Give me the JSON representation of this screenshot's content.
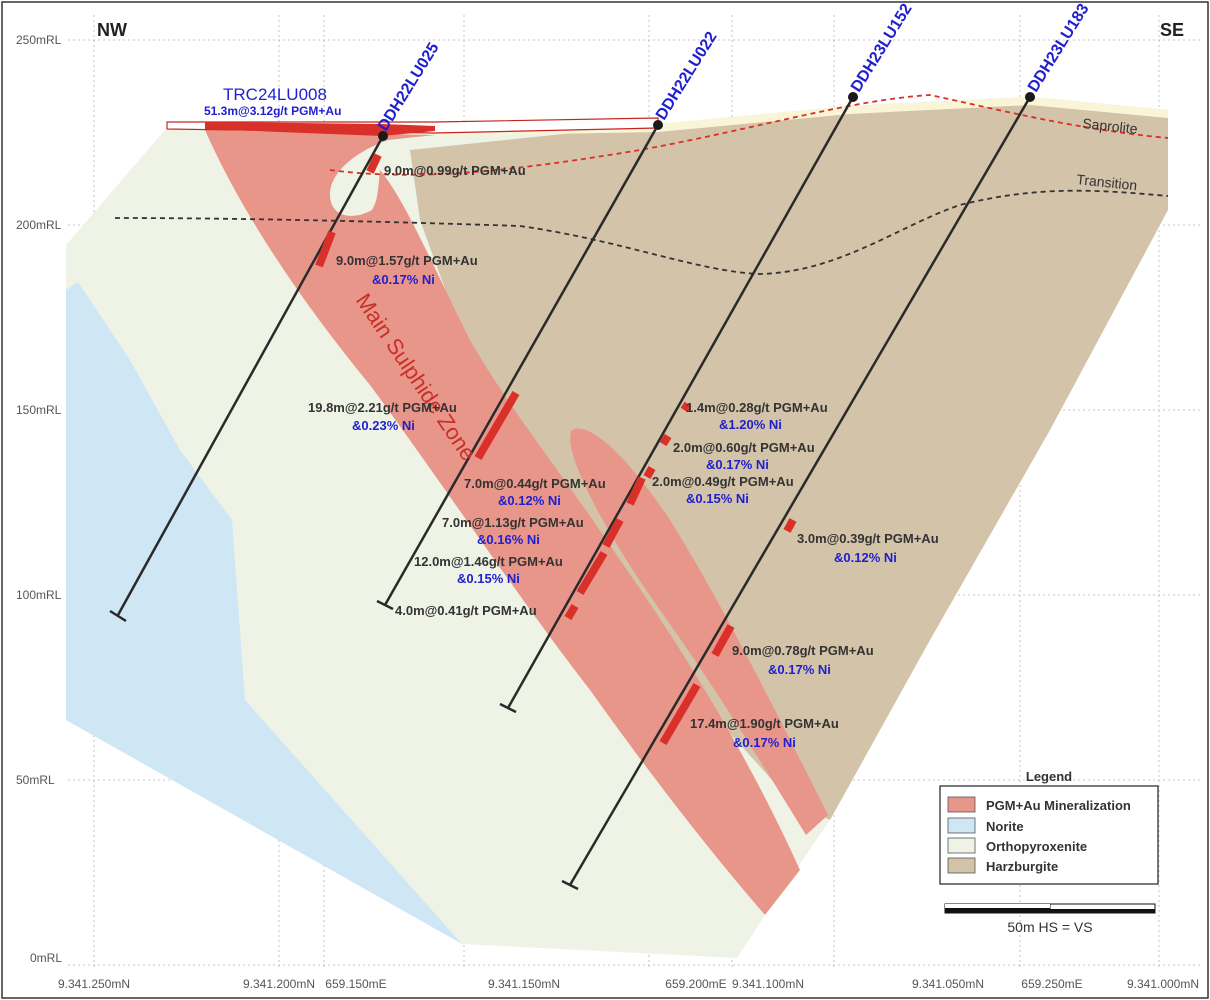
{
  "compass": {
    "left": "NW",
    "right": "SE"
  },
  "rl_labels": [
    "250mRL",
    "200mRL",
    "150mRL",
    "100mRL",
    "50mRL",
    "0mRL"
  ],
  "bottom_labels": [
    "9.341.250mN",
    "9.341.200mN",
    "659.150mE",
    "9.341.150mN",
    "659.200mE",
    "9.341.100mN",
    "9.341.050mN",
    "659.250mE",
    "9.341.000mN"
  ],
  "holes": {
    "trc": "TRC24LU008",
    "trc_result": "51.3m@3.12g/t PGM+Au",
    "h1": "DDH22LU025",
    "h2": "DDH22LU022",
    "h3": "DDH23LU152",
    "h4": "DDH23LU183"
  },
  "zone_label": "Main Sulphide Zone",
  "surfaces": {
    "saprolite": "Saprolite",
    "transition": "Transition"
  },
  "intercepts": {
    "i1": "9.0m@0.99g/t PGM+Au",
    "i2a": "9.0m@1.57g/t PGM+Au",
    "i2b": "&0.17% Ni",
    "i3a": "19.8m@2.21g/t PGM+Au",
    "i3b": "&0.23% Ni",
    "i4a": "7.0m@0.44g/t PGM+Au",
    "i4b": "&0.12% Ni",
    "i5a": "7.0m@1.13g/t PGM+Au",
    "i5b": "&0.16% Ni",
    "i6a": "12.0m@1.46g/t PGM+Au",
    "i6b": "&0.15% Ni",
    "i7": "4.0m@0.41g/t PGM+Au",
    "i8a": "1.4m@0.28g/t PGM+Au",
    "i8b": "&1.20% Ni",
    "i9a": "2.0m@0.60g/t PGM+Au",
    "i9b": "&0.17% Ni",
    "i10a": "2.0m@0.49g/t PGM+Au",
    "i10b": "&0.15% Ni",
    "i11a": "3.0m@0.39g/t PGM+Au",
    "i11b": "&0.12% Ni",
    "i12a": "9.0m@0.78g/t PGM+Au",
    "i12b": "&0.17% Ni",
    "i13a": "17.4m@1.90g/t PGM+Au",
    "i13b": "&0.17% Ni"
  },
  "legend": {
    "title": "Legend",
    "items": [
      {
        "label": "PGM+Au Mineralization",
        "color": "#e9968a"
      },
      {
        "label": "Norite",
        "color": "#cfe6f5"
      },
      {
        "label": "Orthopyroxenite",
        "color": "#eef3e6"
      },
      {
        "label": "Harzburgite",
        "color": "#d3c3a8"
      }
    ]
  },
  "scale_bar": {
    "label": "50m  HS = VS"
  },
  "colors": {
    "hole_label": "#1f1fd0",
    "ni_label": "#1f1fd0",
    "ore": "#e9968a",
    "intercept": "#d9302a"
  }
}
